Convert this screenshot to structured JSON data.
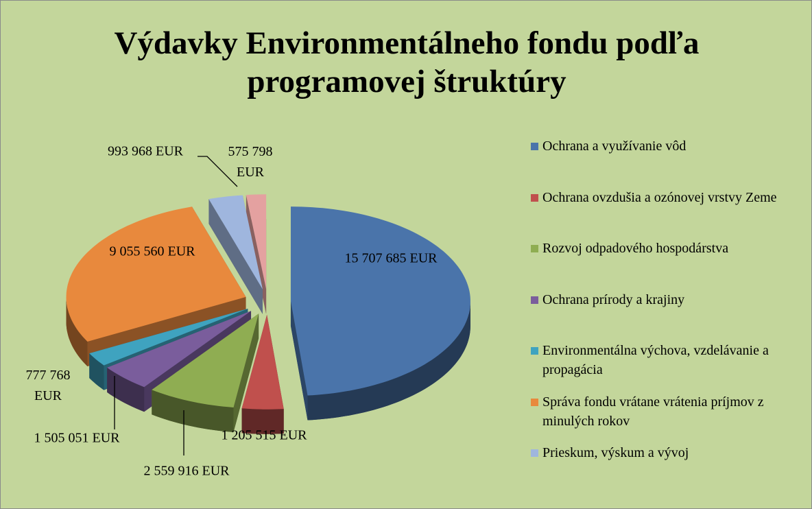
{
  "chart_data": {
    "type": "pie3d",
    "title": "Výdavky Environmentálneho fondu podľa\nprogramovej štruktúry",
    "categories": [
      "Ochrana a využívanie vôd",
      "Ochrana ovzdušia a ozónovej vrstvy Zeme",
      "Rozvoj odpadového hospodárstva",
      "Ochrana prírody a krajiny",
      "Environmentálna výchova, vzdelávanie a propagácia",
      "Správa fondu vrátane vrátenia príjmov z minulých rokov",
      "Prieskum, výskum a vývoj",
      null
    ],
    "values": [
      15707685,
      1205515,
      2559916,
      1505051,
      777768,
      9055560,
      993968,
      575798
    ],
    "value_labels": [
      "15 707 685 EUR",
      "1 205 515 EUR",
      "2 559 916 EUR",
      "1 505 051 EUR",
      "777 768 EUR",
      "9 055 560 EUR",
      "993 968 EUR",
      "575 798 EUR"
    ],
    "colors": [
      "#4a74aa",
      "#c0504d",
      "#8fad52",
      "#7a5d9c",
      "#3fa3bf",
      "#e8893d",
      "#9fb6de",
      "#e4a1a0"
    ],
    "legend": "right"
  }
}
